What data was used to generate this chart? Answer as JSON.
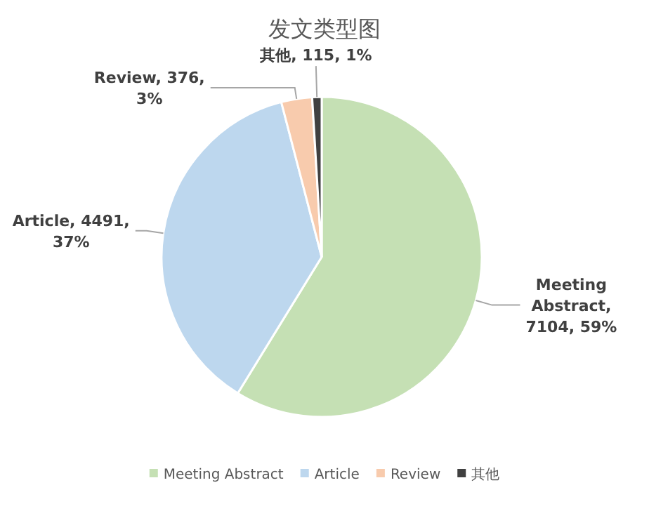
{
  "chart_data": {
    "type": "pie",
    "title": "发文类型图",
    "categories": [
      "Meeting Abstract",
      "Article",
      "Review",
      "其他"
    ],
    "values": [
      7104,
      4491,
      376,
      115
    ],
    "value_labels": [
      "Meeting Abstract, 7104, 59%",
      "Article, 4491, 37%",
      "Review, 376, 3%",
      "其他, 115, 1%"
    ],
    "colors": [
      "#c5e0b4",
      "#bdd7ee",
      "#f8cbad",
      "#404040"
    ],
    "legend": "bottom"
  }
}
